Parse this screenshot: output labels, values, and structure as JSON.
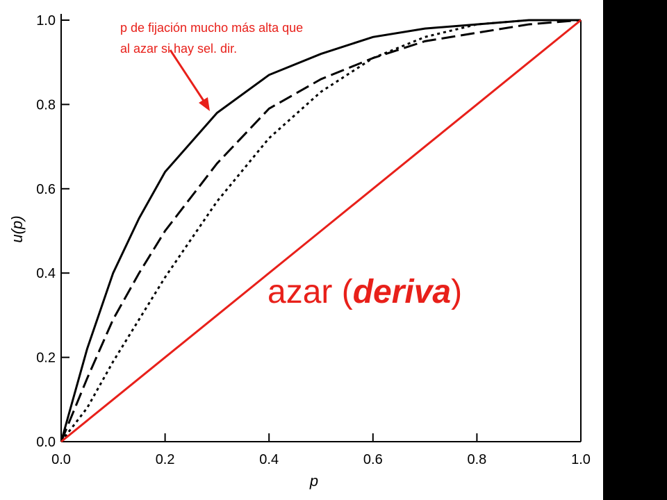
{
  "chart_data": {
    "type": "line",
    "xlabel": "p",
    "ylabel": "u(p)",
    "x": [
      0,
      0.05,
      0.1,
      0.15,
      0.2,
      0.3,
      0.4,
      0.5,
      0.6,
      0.7,
      0.8,
      0.9,
      1
    ],
    "series": [
      {
        "color": "#000000",
        "style": "solid",
        "values": [
          0,
          0.22,
          0.4,
          0.53,
          0.64,
          0.78,
          0.87,
          0.92,
          0.96,
          0.98,
          0.99,
          1,
          1
        ]
      },
      {
        "color": "#000000",
        "style": "dashed",
        "values": [
          0,
          0.15,
          0.29,
          0.4,
          0.5,
          0.66,
          0.79,
          0.86,
          0.91,
          0.95,
          0.97,
          0.99,
          1
        ]
      },
      {
        "color": "#000000",
        "style": "dotted",
        "values": [
          0,
          0.08,
          0.19,
          0.29,
          0.39,
          0.57,
          0.72,
          0.83,
          0.91,
          0.96,
          0.99,
          1,
          1
        ]
      },
      {
        "color": "#e8201a",
        "style": "solid",
        "values": [
          0,
          0.05,
          0.1,
          0.15,
          0.2,
          0.3,
          0.4,
          0.5,
          0.6,
          0.7,
          0.8,
          0.9,
          1
        ]
      }
    ],
    "xlim": [
      0,
      1
    ],
    "ylim": [
      0,
      1
    ],
    "xticks": [
      {
        "value": 0,
        "label": "0.0"
      },
      {
        "value": 0.2,
        "label": "0.2"
      },
      {
        "value": 0.4,
        "label": "0.4"
      },
      {
        "value": 0.6,
        "label": "0.6"
      },
      {
        "value": 0.8,
        "label": "0.8"
      },
      {
        "value": 1,
        "label": "1.0"
      }
    ],
    "yticks": [
      {
        "value": 0,
        "label": "0.0"
      },
      {
        "value": 0.2,
        "label": "0.2"
      },
      {
        "value": 0.4,
        "label": "0.4"
      },
      {
        "value": 0.6,
        "label": "0.6"
      },
      {
        "value": 0.8,
        "label": "0.8"
      },
      {
        "value": 1,
        "label": "1.0"
      }
    ],
    "grid": false,
    "annotations": [
      {
        "lines": [
          "p de fijación mucho más alta que",
          "al azar si hay sel. dir."
        ]
      },
      {
        "parts": [
          "azar (",
          "deriva",
          ")"
        ]
      }
    ]
  }
}
